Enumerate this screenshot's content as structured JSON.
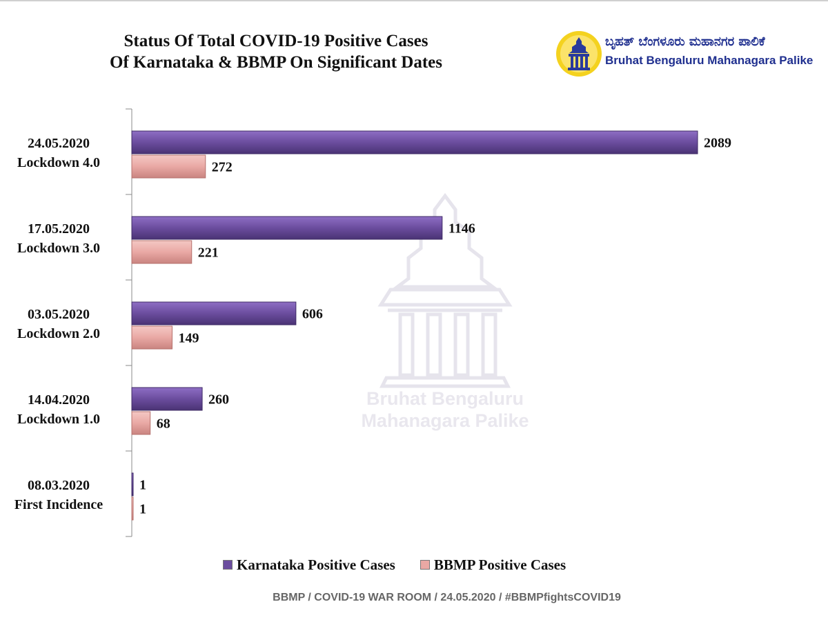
{
  "header": {
    "title_line1": "Status Of Total COVID-19 Positive Cases",
    "title_line2": "Of Karnataka & BBMP On Significant Dates"
  },
  "logo": {
    "kannada": "ಬೃಹತ್ ಬೆಂಗಳೂರು ಮಹಾನಗರ ಪಾಲಿಕೆ",
    "english": "Bruhat Bengaluru Mahanagara Palike"
  },
  "watermark": {
    "line1": "Bruhat Bengaluru",
    "line2": "Mahanagara Palike"
  },
  "chart_data": {
    "type": "bar",
    "orientation": "horizontal",
    "title": "Status Of Total COVID-19 Positive Cases Of Karnataka & BBMP On Significant Dates",
    "categories": [
      {
        "date": "24.05.2020",
        "label": "Lockdown 4.0"
      },
      {
        "date": "17.05.2020",
        "label": "Lockdown 3.0"
      },
      {
        "date": "03.05.2020",
        "label": "Lockdown 2.0"
      },
      {
        "date": "14.04.2020",
        "label": "Lockdown 1.0"
      },
      {
        "date": "08.03.2020",
        "label": "First Incidence"
      }
    ],
    "series": [
      {
        "name": "Karnataka Positive Cases",
        "color": "#6b4d9e",
        "values": [
          2089,
          1146,
          606,
          260,
          1
        ]
      },
      {
        "name": "BBMP Positive Cases",
        "color": "#e9a8a4",
        "values": [
          272,
          221,
          149,
          68,
          1
        ]
      }
    ],
    "xlim": [
      0,
      2089
    ],
    "data_labels": true,
    "grid": false,
    "legend_position": "bottom"
  },
  "footer": {
    "text": "BBMP / COVID-19 WAR ROOM  / 24.05.2020 / #BBMPfightsCOVID19"
  }
}
